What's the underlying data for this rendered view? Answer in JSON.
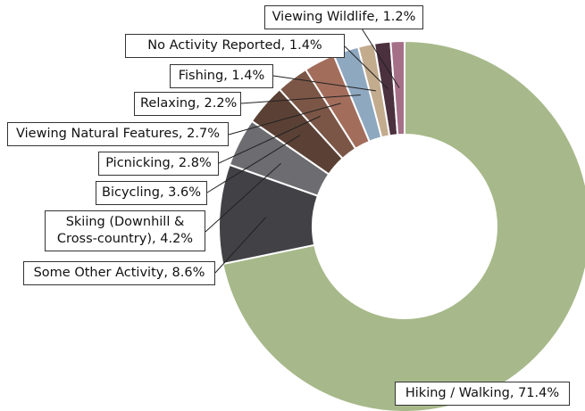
{
  "chart_data": {
    "type": "donut",
    "categories": [
      "Hiking / Walking",
      "Some Other Activity",
      "Skiing (Downhill & Cross-country)",
      "Bicycling",
      "Picnicking",
      "Viewing Natural Features",
      "Relaxing",
      "Fishing",
      "No Activity Reported",
      "Viewing Wildlife"
    ],
    "values": [
      71.4,
      8.6,
      4.2,
      3.6,
      2.8,
      2.7,
      2.2,
      1.4,
      1.4,
      1.2
    ],
    "value_labels": [
      "Hiking / Walking, 71.4%",
      "Some Other Activity, 8.6%",
      "Skiing (Downhill & Cross-country), 4.2%",
      "Bicycling, 3.6%",
      "Picnicking, 2.8%",
      "Viewing Natural Features, 2.7%",
      "Relaxing, 2.2%",
      "Fishing, 1.4%",
      "No Activity Reported, 1.4%",
      "Viewing Wildlife, 1.2%"
    ],
    "colors": [
      "#a7b98a",
      "#424246",
      "#6d6d71",
      "#5b4135",
      "#7b5646",
      "#a36d5c",
      "#8ea8c0",
      "#c3ab8e",
      "#4b303e",
      "#a56f88"
    ]
  }
}
